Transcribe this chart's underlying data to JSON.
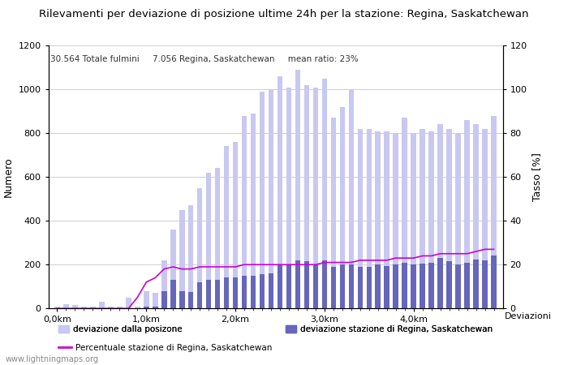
{
  "title": "Rilevamenti per deviazione di posizione ultime 24h per la stazione: Regina, Saskatchewan",
  "subtitle": "30.564 Totale fulmini     7.056 Regina, Saskatchewan     mean ratio: 23%",
  "ylabel_left": "Numero",
  "ylabel_right": "Tasso [%]",
  "deviazioni_label": "Deviazioni",
  "watermark": "www.lightningmaps.org",
  "legend_labels": [
    "deviazione dalla posizone",
    "deviazione stazione di Regina, Saskatchewan",
    "Percentuale stazione di Regina, Saskatchewan"
  ],
  "x_tick_labels": [
    "0,0km",
    "1,0km",
    "2,0km",
    "3,0km",
    "4,0km"
  ],
  "x_tick_positions": [
    0,
    10,
    20,
    30,
    40
  ],
  "ylim_left": [
    0,
    1200
  ],
  "ylim_right": [
    0,
    120
  ],
  "yticks_left": [
    0,
    200,
    400,
    600,
    800,
    1000,
    1200
  ],
  "yticks_right": [
    0,
    20,
    40,
    60,
    80,
    100,
    120
  ],
  "background_color": "#ffffff",
  "grid_color": "#c8c8c8",
  "light_bar_color": "#c8c8f0",
  "dark_bar_color": "#6666bb",
  "line_color": "#cc00cc",
  "bars_light": [
    10,
    20,
    15,
    10,
    10,
    30,
    10,
    10,
    50,
    10,
    80,
    70,
    220,
    360,
    450,
    470,
    550,
    620,
    640,
    740,
    760,
    880,
    890,
    990,
    1000,
    1060,
    1010,
    1090,
    1020,
    1010,
    1050,
    870,
    920,
    1000,
    820,
    820,
    810,
    810,
    800,
    870,
    800,
    820,
    810,
    840,
    820,
    800,
    860,
    840,
    820,
    880
  ],
  "bars_dark": [
    0,
    0,
    0,
    0,
    0,
    0,
    0,
    0,
    0,
    0,
    10,
    10,
    80,
    130,
    80,
    75,
    120,
    130,
    130,
    140,
    140,
    150,
    150,
    155,
    160,
    200,
    200,
    220,
    215,
    200,
    220,
    190,
    200,
    200,
    190,
    190,
    200,
    195,
    200,
    210,
    200,
    205,
    210,
    230,
    215,
    200,
    210,
    225,
    220,
    240
  ],
  "line_pct": [
    0,
    0,
    0,
    0,
    0,
    0,
    0,
    0,
    0,
    5,
    12,
    14,
    18,
    19,
    18,
    18,
    19,
    19,
    19,
    19,
    19,
    20,
    20,
    20,
    20,
    20,
    20,
    20,
    20,
    20,
    21,
    21,
    21,
    21,
    22,
    22,
    22,
    22,
    23,
    23,
    23,
    24,
    24,
    25,
    25,
    25,
    25,
    26,
    27,
    27
  ]
}
